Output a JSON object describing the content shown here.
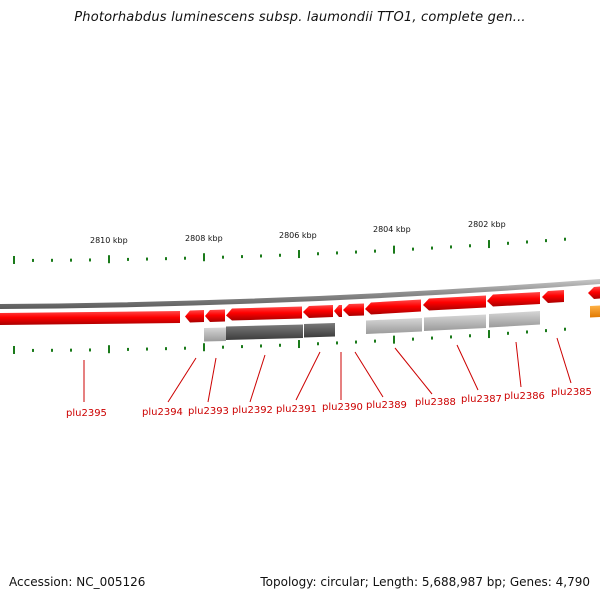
{
  "title": "Photorhabdus luminescens subsp. laumondii TTO1, complete gen...",
  "scale_labels": [
    "2810 kbp",
    "2808 kbp",
    "2806 kbp",
    "2804 kbp",
    "2802 kbp"
  ],
  "genes": [
    "plu2395",
    "plu2394",
    "plu2393",
    "plu2392",
    "plu2391",
    "plu2390",
    "plu2389",
    "plu2388",
    "plu2387",
    "plu2386",
    "plu2385"
  ],
  "footer": {
    "accession": "Accession: NC_005126",
    "summary": "Topology: circular; Length: 5,688,987 bp; Genes: 4,790"
  },
  "colors": {
    "gene_fill": "#ff0000",
    "gene_dark": "#b30000",
    "backbone": "#888888",
    "homolog_light": "#b4b4b4",
    "homolog_dark": "#555555",
    "tick": "#1a7a1a",
    "label": "#cc0000",
    "other_feature": "#ff8c00"
  }
}
